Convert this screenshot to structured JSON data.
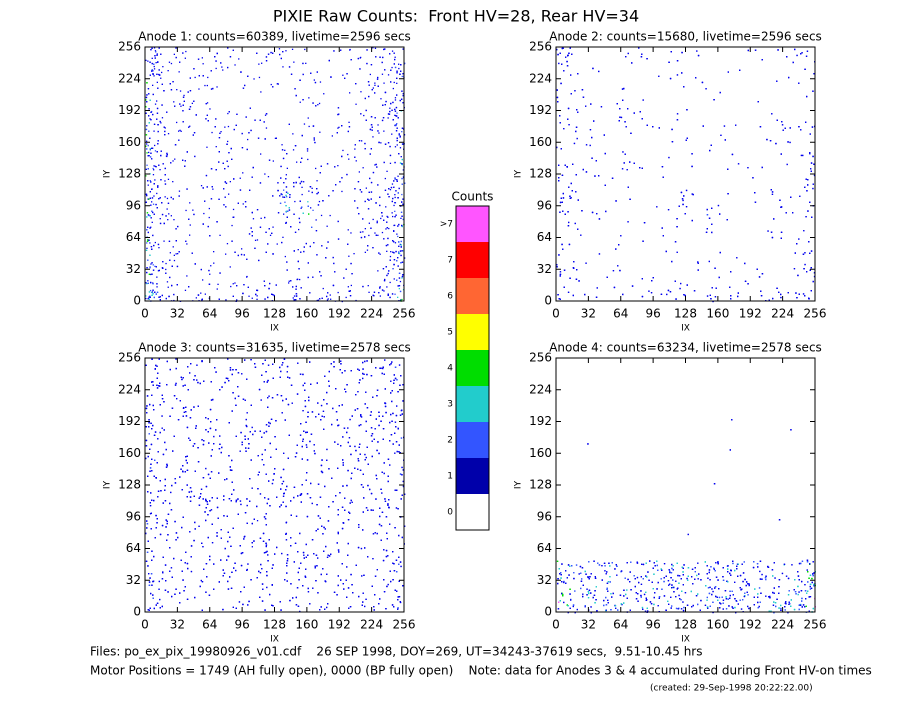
{
  "title": "PIXIE Raw Counts:  Front HV=28, Rear HV=34",
  "chart_data": [
    {
      "type": "image",
      "title": "Anode 1: counts=60389, livetime=2596 secs",
      "xlabel": "IX",
      "ylabel": "IY",
      "xlim": [
        0,
        256
      ],
      "ylim": [
        0,
        256
      ],
      "xticks": [
        0,
        32,
        64,
        96,
        128,
        160,
        192,
        224,
        256
      ],
      "yticks": [
        0,
        32,
        64,
        96,
        128,
        160,
        192,
        224,
        256
      ]
    },
    {
      "type": "image",
      "title": "Anode 2: counts=15680, livetime=2596 secs",
      "xlabel": "IX",
      "ylabel": "IY",
      "xlim": [
        0,
        256
      ],
      "ylim": [
        0,
        256
      ],
      "xticks": [
        0,
        32,
        64,
        96,
        128,
        160,
        192,
        224,
        256
      ],
      "yticks": [
        0,
        32,
        64,
        96,
        128,
        160,
        192,
        224,
        256
      ]
    },
    {
      "type": "image",
      "title": "Anode 3: counts=31635, livetime=2578 secs",
      "xlabel": "IX",
      "ylabel": "IY",
      "xlim": [
        0,
        256
      ],
      "ylim": [
        0,
        256
      ],
      "xticks": [
        0,
        32,
        64,
        96,
        128,
        160,
        192,
        224,
        256
      ],
      "yticks": [
        0,
        32,
        64,
        96,
        128,
        160,
        192,
        224,
        256
      ]
    },
    {
      "type": "image",
      "title": "Anode 4: counts=63234, livetime=2578 secs",
      "xlabel": "IX",
      "ylabel": "IY",
      "xlim": [
        0,
        256
      ],
      "ylim": [
        0,
        256
      ],
      "xticks": [
        0,
        32,
        64,
        96,
        128,
        160,
        192,
        224,
        256
      ],
      "yticks": [
        0,
        32,
        64,
        96,
        128,
        160,
        192,
        224,
        256
      ]
    }
  ],
  "colorbar": {
    "title": "Counts",
    "labels": [
      ">7",
      "7",
      "6",
      "5",
      "4",
      "3",
      "2",
      "1",
      "0"
    ],
    "colors": [
      "#ff55ff",
      "#ff0000",
      "#ff6633",
      "#ffff00",
      "#00dd00",
      "#22cccc",
      "#3355ff",
      "#0000aa",
      "#ffffff"
    ]
  },
  "footer": {
    "files": "Files: po_ex_pix_19980926_v01.cdf    26 SEP 1998, DOY=269, UT=34243-37619 secs,  9.51-10.45 hrs",
    "motor": "Motor Positions = 1749 (AH fully open), 0000 (BP fully open)    Note: data for Anodes 3 & 4 accumulated during Front HV-on times",
    "created": "(created: 29-Sep-1998 20:22:22.00)"
  }
}
